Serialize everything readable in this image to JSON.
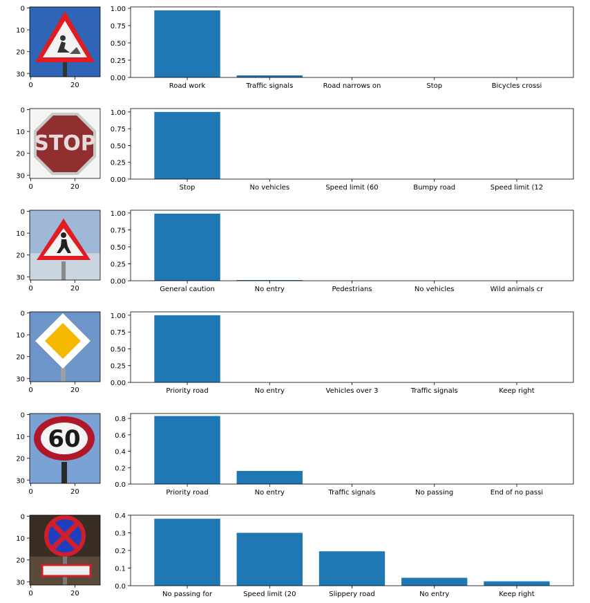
{
  "colors": {
    "bar": "#1f77b4",
    "axis": "#000000",
    "background": "#ffffff"
  },
  "image_axis": {
    "x_ticks": [
      0,
      20
    ],
    "y_ticks": [
      0,
      10,
      20,
      30
    ],
    "extent": 32
  },
  "rows": [
    {
      "sign_icon": "road-work-sign",
      "chart_data": {
        "type": "bar",
        "categories": [
          "Road work",
          "Traffic signals",
          "Road narrows on",
          "Stop",
          "Bicycles crossi"
        ],
        "values": [
          0.97,
          0.03,
          0.0,
          0.0,
          0.0
        ],
        "ylim": [
          0,
          1.02
        ],
        "yticks": [
          "0.00",
          "0.25",
          "0.50",
          "0.75",
          "1.00"
        ],
        "ytick_values": [
          0,
          0.25,
          0.5,
          0.75,
          1.0
        ]
      }
    },
    {
      "sign_icon": "stop-sign",
      "chart_data": {
        "type": "bar",
        "categories": [
          "Stop",
          "No vehicles",
          "Speed limit (60",
          "Bumpy road",
          "Speed limit (12"
        ],
        "values": [
          1.0,
          0.0,
          0.0,
          0.0,
          0.0
        ],
        "ylim": [
          0,
          1.05
        ],
        "yticks": [
          "0.00",
          "0.25",
          "0.50",
          "0.75",
          "1.00"
        ],
        "ytick_values": [
          0,
          0.25,
          0.5,
          0.75,
          1.0
        ]
      }
    },
    {
      "sign_icon": "pedestrian-warning-sign",
      "chart_data": {
        "type": "bar",
        "categories": [
          "General caution",
          "No entry",
          "Pedestrians",
          "No vehicles",
          "Wild animals cr"
        ],
        "values": [
          0.99,
          0.01,
          0.0,
          0.0,
          0.0
        ],
        "ylim": [
          0,
          1.04
        ],
        "yticks": [
          "0.00",
          "0.25",
          "0.50",
          "0.75",
          "1.00"
        ],
        "ytick_values": [
          0,
          0.25,
          0.5,
          0.75,
          1.0
        ]
      }
    },
    {
      "sign_icon": "priority-road-sign",
      "chart_data": {
        "type": "bar",
        "categories": [
          "Priority road",
          "No entry",
          "Vehicles over 3",
          "Traffic signals",
          "Keep right"
        ],
        "values": [
          1.0,
          0.0,
          0.0,
          0.0,
          0.0
        ],
        "ylim": [
          0,
          1.05
        ],
        "yticks": [
          "0.00",
          "0.25",
          "0.50",
          "0.75",
          "1.00"
        ],
        "ytick_values": [
          0,
          0.25,
          0.5,
          0.75,
          1.0
        ]
      }
    },
    {
      "sign_icon": "speed-limit-60-sign",
      "chart_data": {
        "type": "bar",
        "categories": [
          "Priority road",
          "No entry",
          "Traffic signals",
          "No passing",
          "End of no passi"
        ],
        "values": [
          0.83,
          0.16,
          0.0,
          0.0,
          0.0
        ],
        "ylim": [
          0,
          0.86
        ],
        "yticks": [
          "0.0",
          "0.2",
          "0.4",
          "0.6",
          "0.8"
        ],
        "ytick_values": [
          0,
          0.2,
          0.4,
          0.6,
          0.8
        ]
      }
    },
    {
      "sign_icon": "no-parking-sign",
      "chart_data": {
        "type": "bar",
        "categories": [
          "No passing for",
          "Speed limit (20",
          "Slippery road",
          "No entry",
          "Keep right"
        ],
        "values": [
          0.38,
          0.3,
          0.195,
          0.045,
          0.025
        ],
        "ylim": [
          0,
          0.4
        ],
        "yticks": [
          "0.0",
          "0.1",
          "0.2",
          "0.3",
          "0.4"
        ],
        "ytick_values": [
          0,
          0.1,
          0.2,
          0.3,
          0.4
        ]
      }
    }
  ]
}
